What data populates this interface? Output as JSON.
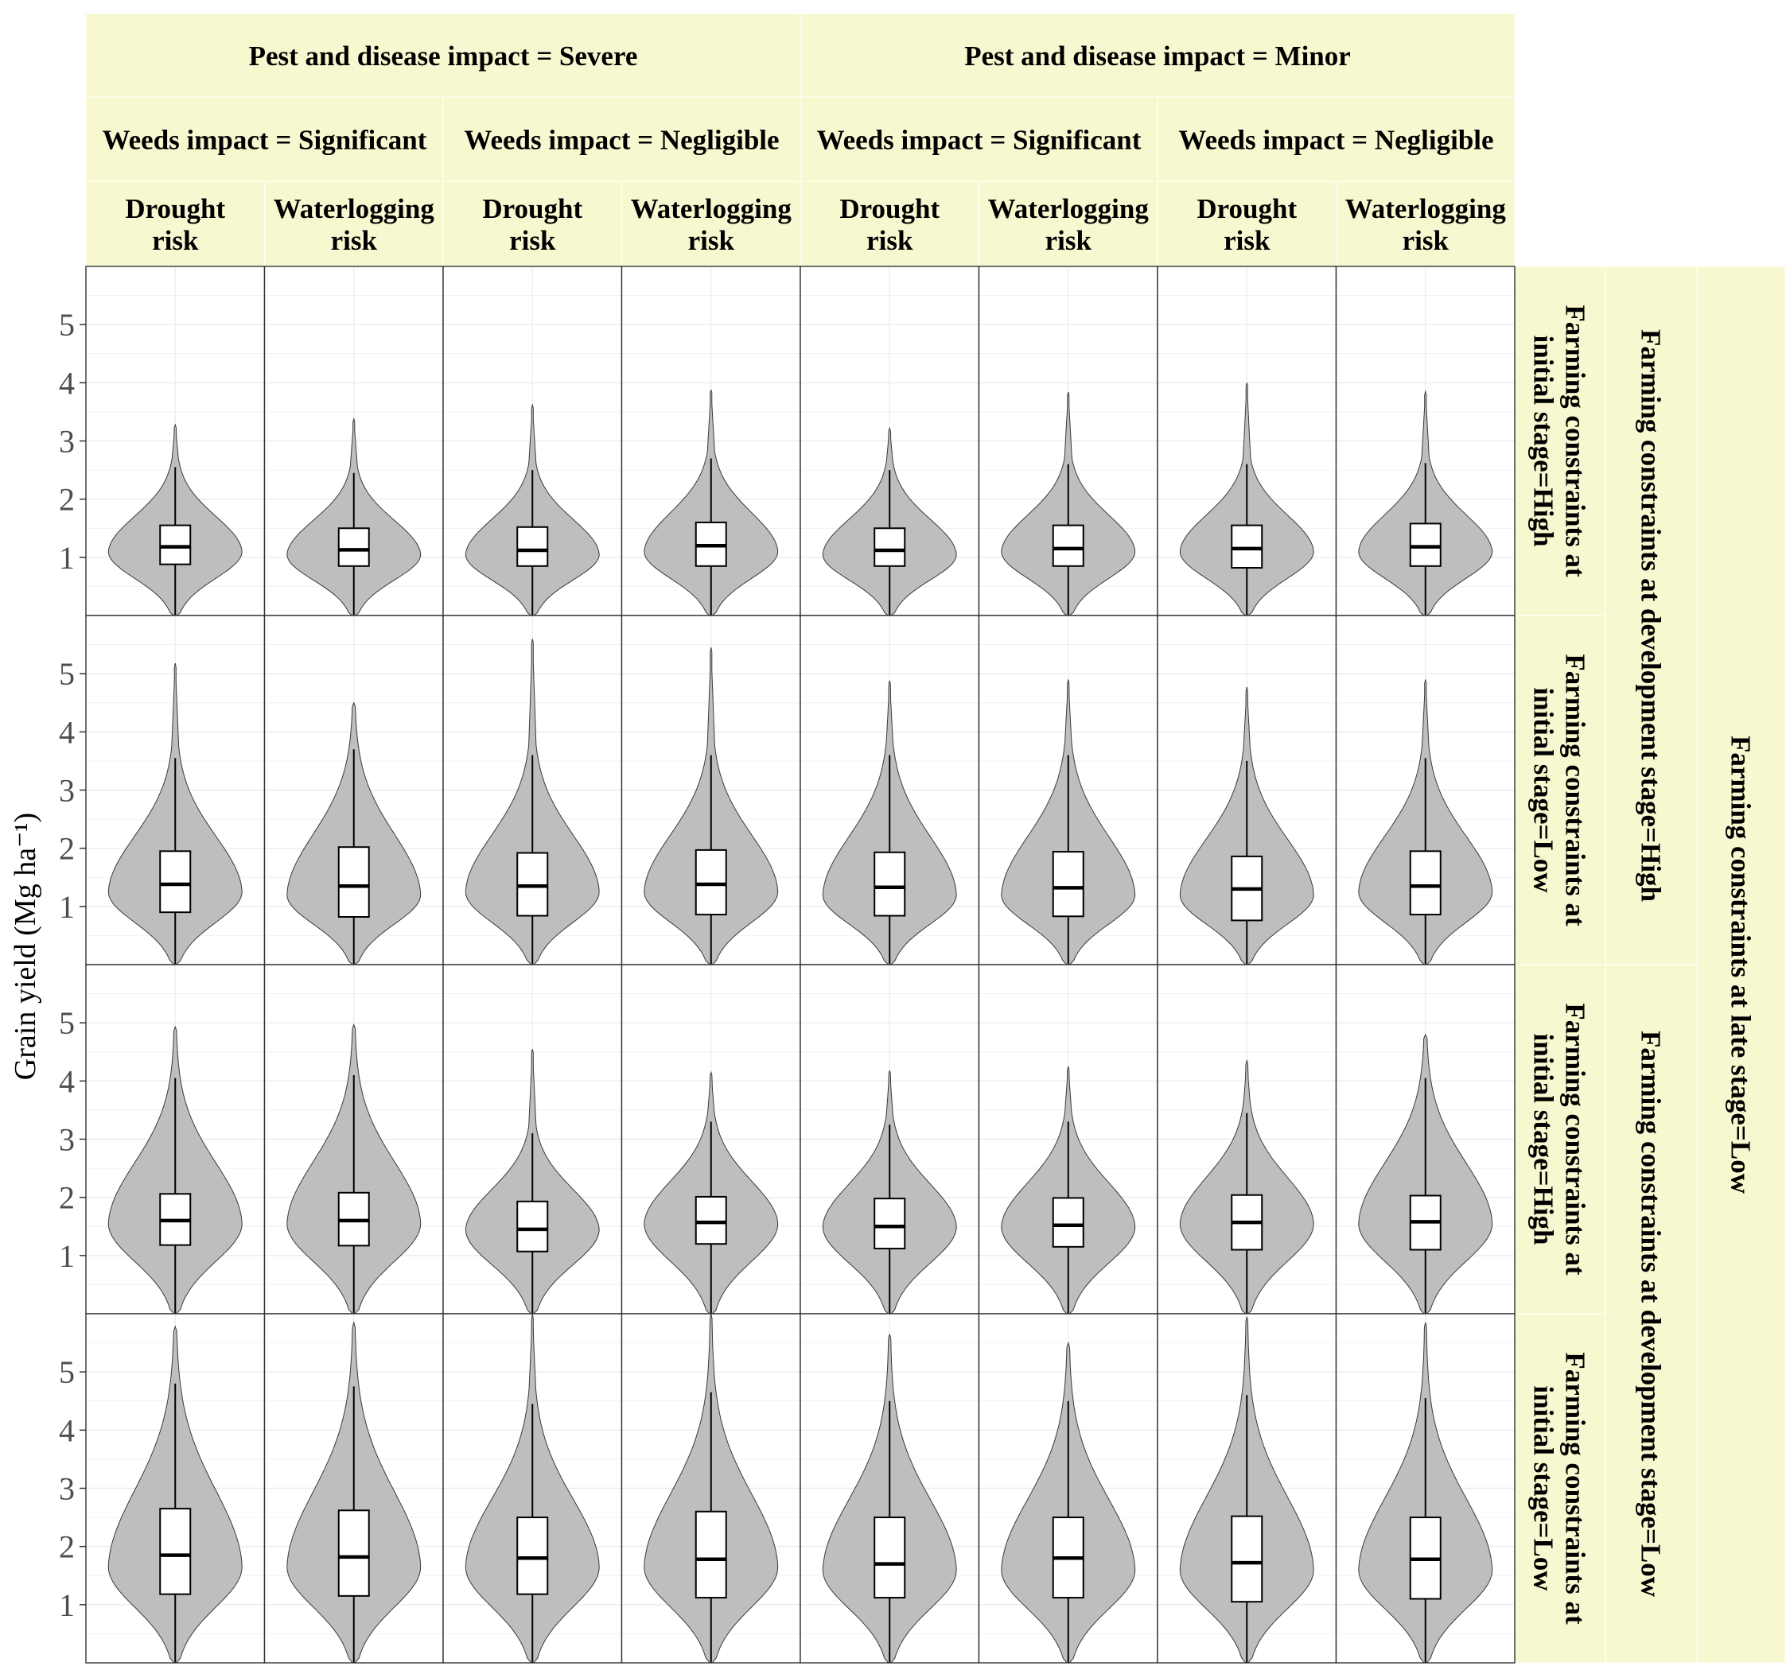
{
  "colors": {
    "strip_fill": "#f8f8d0",
    "violin_fill": "#bebebe",
    "box_fill": "#ffffff",
    "grid": "#ebebeb",
    "outline": "#000000"
  },
  "chart_data": {
    "type": "violin",
    "ylabel": "Grain yield (Mg ha⁻¹)",
    "ylim": [
      0,
      6
    ],
    "y_ticks": [
      1,
      2,
      3,
      4,
      5
    ],
    "grid": true,
    "top_strip_1": [
      "Pest and disease impact = Severe",
      "Pest and disease impact = Minor"
    ],
    "top_strip_2": [
      "Weeds impact = Significant",
      "Weeds impact = Negligible",
      "Weeds impact = Significant",
      "Weeds impact = Negligible"
    ],
    "top_strip_3": [
      [
        "Drought",
        "risk"
      ],
      [
        "Waterlogging",
        "risk"
      ],
      [
        "Drought",
        "risk"
      ],
      [
        "Waterlogging",
        "risk"
      ],
      [
        "Drought",
        "risk"
      ],
      [
        "Waterlogging",
        "risk"
      ],
      [
        "Drought",
        "risk"
      ],
      [
        "Waterlogging",
        "risk"
      ]
    ],
    "right_strip_1": [
      [
        "Farming constraints at",
        "initial stage=High"
      ],
      [
        "Farming constraints at",
        "initial stage=Low"
      ],
      [
        "Farming constraints at",
        "initial stage=High"
      ],
      [
        "Farming constraints at",
        "initial stage=Low"
      ]
    ],
    "right_strip_2": [
      "Farming constraints at development stage=High",
      "Farming constraints at development stage=Low"
    ],
    "right_strip_3": [
      "Farming constraints at late stage=Low"
    ],
    "panels": [
      [
        {
          "median": 1.18,
          "q1": 0.88,
          "q3": 1.55,
          "wlo": 0,
          "whi": 2.55,
          "max": 3.28,
          "peak": 1.1
        },
        {
          "median": 1.13,
          "q1": 0.85,
          "q3": 1.5,
          "wlo": 0,
          "whi": 2.45,
          "max": 3.38,
          "peak": 1.05
        },
        {
          "median": 1.12,
          "q1": 0.85,
          "q3": 1.52,
          "wlo": 0,
          "whi": 2.5,
          "max": 3.62,
          "peak": 1.05
        },
        {
          "median": 1.2,
          "q1": 0.85,
          "q3": 1.6,
          "wlo": 0,
          "whi": 2.7,
          "max": 3.88,
          "peak": 1.1
        },
        {
          "median": 1.12,
          "q1": 0.85,
          "q3": 1.5,
          "wlo": 0,
          "whi": 2.5,
          "max": 3.22,
          "peak": 1.05
        },
        {
          "median": 1.15,
          "q1": 0.85,
          "q3": 1.55,
          "wlo": 0,
          "whi": 2.6,
          "max": 3.84,
          "peak": 1.1
        },
        {
          "median": 1.15,
          "q1": 0.82,
          "q3": 1.55,
          "wlo": 0,
          "whi": 2.6,
          "max": 4.0,
          "peak": 1.1
        },
        {
          "median": 1.18,
          "q1": 0.85,
          "q3": 1.58,
          "wlo": 0,
          "whi": 2.62,
          "max": 3.85,
          "peak": 1.1
        }
      ],
      [
        {
          "median": 1.38,
          "q1": 0.9,
          "q3": 1.95,
          "wlo": 0,
          "whi": 3.55,
          "max": 5.18,
          "peak": 1.25
        },
        {
          "median": 1.35,
          "q1": 0.82,
          "q3": 2.02,
          "wlo": 0,
          "whi": 3.7,
          "max": 4.5,
          "peak": 1.2
        },
        {
          "median": 1.35,
          "q1": 0.84,
          "q3": 1.92,
          "wlo": 0,
          "whi": 3.6,
          "max": 5.6,
          "peak": 1.25
        },
        {
          "median": 1.38,
          "q1": 0.86,
          "q3": 1.97,
          "wlo": 0,
          "whi": 3.6,
          "max": 5.45,
          "peak": 1.25
        },
        {
          "median": 1.33,
          "q1": 0.84,
          "q3": 1.93,
          "wlo": 0,
          "whi": 3.6,
          "max": 4.88,
          "peak": 1.2
        },
        {
          "median": 1.32,
          "q1": 0.83,
          "q3": 1.94,
          "wlo": 0,
          "whi": 3.6,
          "max": 4.9,
          "peak": 1.2
        },
        {
          "median": 1.3,
          "q1": 0.76,
          "q3": 1.86,
          "wlo": 0,
          "whi": 3.5,
          "max": 4.77,
          "peak": 1.2
        },
        {
          "median": 1.35,
          "q1": 0.86,
          "q3": 1.95,
          "wlo": 0,
          "whi": 3.55,
          "max": 4.9,
          "peak": 1.25
        }
      ],
      [
        {
          "median": 1.6,
          "q1": 1.18,
          "q3": 2.06,
          "wlo": 0,
          "whi": 4.05,
          "max": 4.93,
          "peak": 1.55
        },
        {
          "median": 1.6,
          "q1": 1.17,
          "q3": 2.08,
          "wlo": 0,
          "whi": 4.1,
          "max": 4.97,
          "peak": 1.55
        },
        {
          "median": 1.45,
          "q1": 1.07,
          "q3": 1.93,
          "wlo": 0,
          "whi": 3.1,
          "max": 4.55,
          "peak": 1.45
        },
        {
          "median": 1.57,
          "q1": 1.2,
          "q3": 2.01,
          "wlo": 0,
          "whi": 3.3,
          "max": 4.15,
          "peak": 1.55
        },
        {
          "median": 1.5,
          "q1": 1.12,
          "q3": 1.98,
          "wlo": 0,
          "whi": 3.25,
          "max": 4.18,
          "peak": 1.5
        },
        {
          "median": 1.52,
          "q1": 1.15,
          "q3": 1.99,
          "wlo": 0,
          "whi": 3.3,
          "max": 4.25,
          "peak": 1.5
        },
        {
          "median": 1.57,
          "q1": 1.1,
          "q3": 2.04,
          "wlo": 0,
          "whi": 3.45,
          "max": 4.35,
          "peak": 1.55
        },
        {
          "median": 1.58,
          "q1": 1.1,
          "q3": 2.03,
          "wlo": 0,
          "whi": 4.05,
          "max": 4.8,
          "peak": 1.55
        }
      ],
      [
        {
          "median": 1.85,
          "q1": 1.18,
          "q3": 2.65,
          "wlo": 0,
          "whi": 4.8,
          "max": 5.78,
          "peak": 1.65
        },
        {
          "median": 1.82,
          "q1": 1.15,
          "q3": 2.62,
          "wlo": 0,
          "whi": 4.75,
          "max": 5.85,
          "peak": 1.65
        },
        {
          "median": 1.8,
          "q1": 1.18,
          "q3": 2.5,
          "wlo": 0,
          "whi": 4.45,
          "max": 6.0,
          "peak": 1.65
        },
        {
          "median": 1.78,
          "q1": 1.12,
          "q3": 2.6,
          "wlo": 0,
          "whi": 4.65,
          "max": 6.0,
          "peak": 1.65
        },
        {
          "median": 1.7,
          "q1": 1.12,
          "q3": 2.5,
          "wlo": 0,
          "whi": 4.5,
          "max": 5.65,
          "peak": 1.6
        },
        {
          "median": 1.8,
          "q1": 1.12,
          "q3": 2.5,
          "wlo": 0,
          "whi": 4.5,
          "max": 5.5,
          "peak": 1.6
        },
        {
          "median": 1.72,
          "q1": 1.05,
          "q3": 2.52,
          "wlo": 0,
          "whi": 4.6,
          "max": 5.95,
          "peak": 1.6
        },
        {
          "median": 1.78,
          "q1": 1.1,
          "q3": 2.5,
          "wlo": 0,
          "whi": 4.55,
          "max": 5.85,
          "peak": 1.6
        }
      ]
    ]
  }
}
